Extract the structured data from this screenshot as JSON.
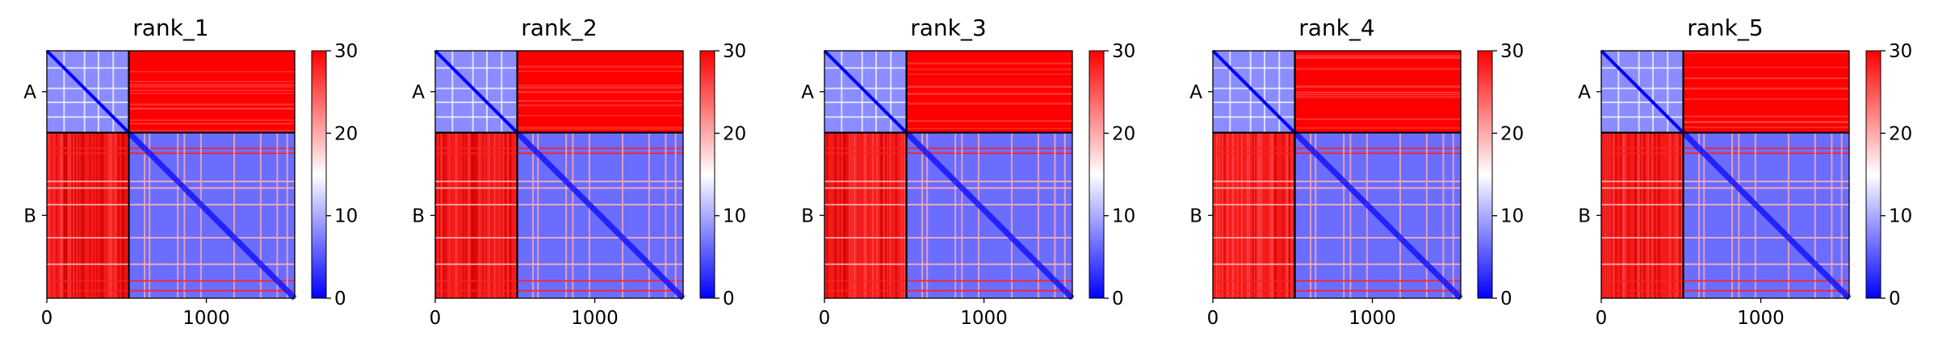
{
  "chart_data": [
    {
      "type": "heatmap",
      "title": "rank_1",
      "xticks": [
        "0",
        "1000"
      ],
      "xtick_values": [
        0,
        1000
      ],
      "xlim": [
        0,
        1554
      ],
      "chains": [
        {
          "label": "A",
          "length": 514
        },
        {
          "label": "B",
          "length": 1040
        }
      ],
      "colorbar": {
        "min": 0,
        "max": 30,
        "ticks": [
          "0",
          "10",
          "20",
          "30"
        ],
        "colormap": [
          "#0000ff",
          "#ffffff",
          "#ff0000"
        ]
      }
    },
    {
      "type": "heatmap",
      "title": "rank_2",
      "xticks": [
        "0",
        "1000"
      ],
      "xtick_values": [
        0,
        1000
      ],
      "xlim": [
        0,
        1554
      ],
      "chains": [
        {
          "label": "A",
          "length": 514
        },
        {
          "label": "B",
          "length": 1040
        }
      ],
      "colorbar": {
        "min": 0,
        "max": 30,
        "ticks": [
          "0",
          "10",
          "20",
          "30"
        ],
        "colormap": [
          "#0000ff",
          "#ffffff",
          "#ff0000"
        ]
      }
    },
    {
      "type": "heatmap",
      "title": "rank_3",
      "xticks": [
        "0",
        "1000"
      ],
      "xtick_values": [
        0,
        1000
      ],
      "xlim": [
        0,
        1554
      ],
      "chains": [
        {
          "label": "A",
          "length": 514
        },
        {
          "label": "B",
          "length": 1040
        }
      ],
      "colorbar": {
        "min": 0,
        "max": 30,
        "ticks": [
          "0",
          "10",
          "20",
          "30"
        ],
        "colormap": [
          "#0000ff",
          "#ffffff",
          "#ff0000"
        ]
      }
    },
    {
      "type": "heatmap",
      "title": "rank_4",
      "xticks": [
        "0",
        "1000"
      ],
      "xtick_values": [
        0,
        1000
      ],
      "xlim": [
        0,
        1554
      ],
      "chains": [
        {
          "label": "A",
          "length": 514
        },
        {
          "label": "B",
          "length": 1040
        }
      ],
      "colorbar": {
        "min": 0,
        "max": 30,
        "ticks": [
          "0",
          "10",
          "20",
          "30"
        ],
        "colormap": [
          "#0000ff",
          "#ffffff",
          "#ff0000"
        ]
      }
    },
    {
      "type": "heatmap",
      "title": "rank_5",
      "xticks": [
        "0",
        "1000"
      ],
      "xtick_values": [
        0,
        1000
      ],
      "xlim": [
        0,
        1554
      ],
      "chains": [
        {
          "label": "A",
          "length": 514
        },
        {
          "label": "B",
          "length": 1040
        }
      ],
      "colorbar": {
        "min": 0,
        "max": 30,
        "ticks": [
          "0",
          "10",
          "20",
          "30"
        ],
        "colormap": [
          "#0000ff",
          "#ffffff",
          "#ff0000"
        ]
      }
    }
  ]
}
